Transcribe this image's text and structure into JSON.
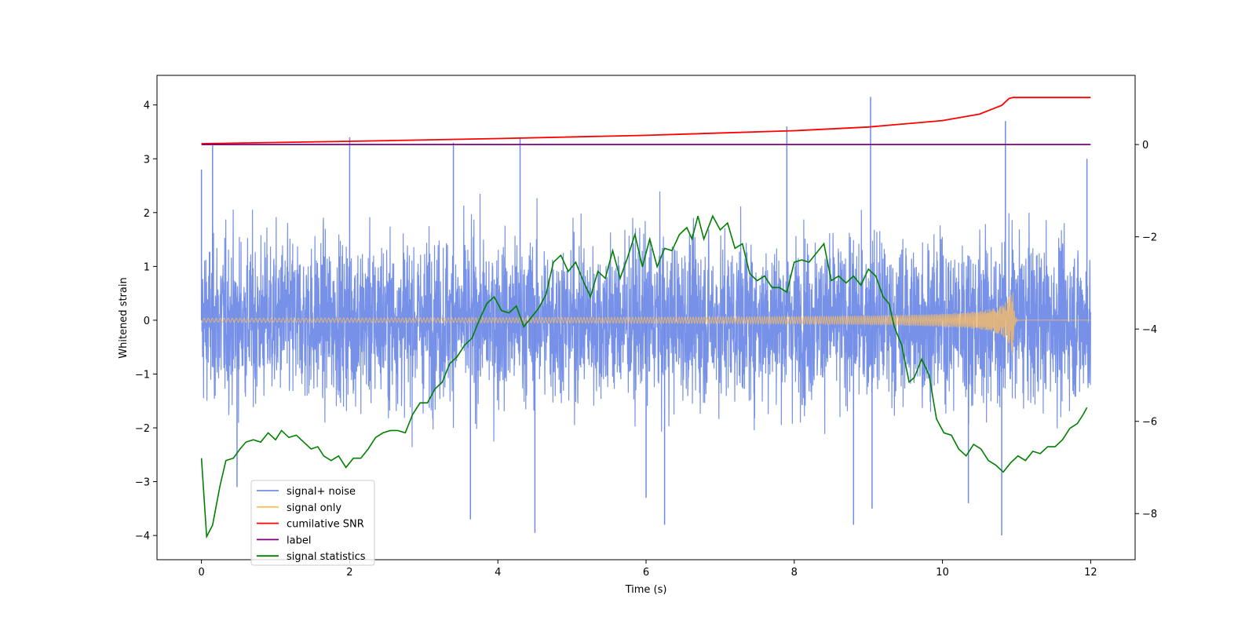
{
  "chart_data": {
    "type": "line",
    "title": "",
    "xlabel": "Time (s)",
    "ylabel": "Whitened strain",
    "xlim": [
      -0.6,
      12.6
    ],
    "ylim": [
      -4.45,
      4.55
    ],
    "y2lim": [
      -9.0,
      1.5
    ],
    "grid": false,
    "legend_position": "lower-left",
    "x_ticks": [
      "0",
      "2",
      "4",
      "6",
      "8",
      "10",
      "12"
    ],
    "y_ticks": [
      "−4",
      "−3",
      "−2",
      "−1",
      "0",
      "1",
      "2",
      "3",
      "4"
    ],
    "y2_ticks": [
      "−8",
      "−6",
      "−4",
      "−2",
      "0"
    ],
    "series": [
      {
        "name": "signal+ noise",
        "axis": "left",
        "color": "#6f8be6",
        "description_points": {
          "envelope_low": -2.0,
          "envelope_high": 2.0,
          "spikes": [
            [
              0.0,
              2.8
            ],
            [
              0.15,
              3.3
            ],
            [
              0.48,
              -3.1
            ],
            [
              2.0,
              3.4
            ],
            [
              3.4,
              3.3
            ],
            [
              3.63,
              -3.7
            ],
            [
              4.3,
              3.4
            ],
            [
              4.5,
              -3.95
            ],
            [
              6.0,
              -3.3
            ],
            [
              6.25,
              -3.8
            ],
            [
              7.9,
              3.6
            ],
            [
              8.8,
              -3.8
            ],
            [
              9.03,
              4.15
            ],
            [
              9.05,
              -3.5
            ],
            [
              10.35,
              -3.4
            ],
            [
              10.8,
              -4.0
            ],
            [
              10.85,
              3.7
            ],
            [
              11.95,
              3.0
            ]
          ]
        }
      },
      {
        "name": "signal only",
        "axis": "left",
        "color": "#ffbf5f",
        "chirp": {
          "t_start": 0.0,
          "t_merge": 10.95,
          "t_end": 12.0,
          "max_amplitude": 0.7
        }
      },
      {
        "name": "cumilative SNR",
        "axis": "right",
        "color": "#ff0000",
        "points": [
          [
            0.0,
            0.02
          ],
          [
            2.0,
            0.07
          ],
          [
            4.0,
            0.13
          ],
          [
            6.0,
            0.2
          ],
          [
            8.0,
            0.3
          ],
          [
            9.0,
            0.38
          ],
          [
            10.0,
            0.52
          ],
          [
            10.5,
            0.66
          ],
          [
            10.8,
            0.85
          ],
          [
            10.9,
            1.0
          ],
          [
            10.95,
            1.02
          ],
          [
            12.0,
            1.02
          ]
        ]
      },
      {
        "name": "label",
        "axis": "right",
        "color": "#800080",
        "points": [
          [
            0.0,
            0.0
          ],
          [
            12.0,
            0.0
          ]
        ]
      },
      {
        "name": "signal statistics",
        "axis": "right",
        "color": "#008000",
        "points": [
          [
            0.0,
            -6.8
          ],
          [
            0.07,
            -8.5
          ],
          [
            0.15,
            -8.25
          ],
          [
            0.25,
            -7.4
          ],
          [
            0.33,
            -6.85
          ],
          [
            0.43,
            -6.8
          ],
          [
            0.52,
            -6.6
          ],
          [
            0.6,
            -6.45
          ],
          [
            0.7,
            -6.4
          ],
          [
            0.8,
            -6.45
          ],
          [
            0.9,
            -6.25
          ],
          [
            1.0,
            -6.4
          ],
          [
            1.08,
            -6.2
          ],
          [
            1.18,
            -6.35
          ],
          [
            1.28,
            -6.3
          ],
          [
            1.38,
            -6.45
          ],
          [
            1.48,
            -6.6
          ],
          [
            1.57,
            -6.55
          ],
          [
            1.65,
            -6.75
          ],
          [
            1.75,
            -6.85
          ],
          [
            1.85,
            -6.75
          ],
          [
            1.95,
            -7.0
          ],
          [
            2.05,
            -6.8
          ],
          [
            2.15,
            -6.8
          ],
          [
            2.25,
            -6.6
          ],
          [
            2.35,
            -6.35
          ],
          [
            2.45,
            -6.25
          ],
          [
            2.55,
            -6.2
          ],
          [
            2.65,
            -6.2
          ],
          [
            2.75,
            -6.25
          ],
          [
            2.85,
            -5.85
          ],
          [
            2.95,
            -5.6
          ],
          [
            3.05,
            -5.6
          ],
          [
            3.15,
            -5.3
          ],
          [
            3.25,
            -5.15
          ],
          [
            3.35,
            -4.75
          ],
          [
            3.45,
            -4.6
          ],
          [
            3.55,
            -4.35
          ],
          [
            3.65,
            -4.2
          ],
          [
            3.75,
            -3.8
          ],
          [
            3.85,
            -3.45
          ],
          [
            3.95,
            -3.3
          ],
          [
            4.05,
            -3.6
          ],
          [
            4.15,
            -3.65
          ],
          [
            4.25,
            -3.5
          ],
          [
            4.35,
            -3.95
          ],
          [
            4.45,
            -3.75
          ],
          [
            4.55,
            -3.55
          ],
          [
            4.65,
            -3.25
          ],
          [
            4.75,
            -2.55
          ],
          [
            4.85,
            -2.4
          ],
          [
            4.95,
            -2.75
          ],
          [
            5.05,
            -2.55
          ],
          [
            5.15,
            -2.95
          ],
          [
            5.25,
            -3.3
          ],
          [
            5.35,
            -2.75
          ],
          [
            5.45,
            -2.9
          ],
          [
            5.55,
            -2.3
          ],
          [
            5.65,
            -2.9
          ],
          [
            5.75,
            -2.45
          ],
          [
            5.85,
            -1.95
          ],
          [
            5.95,
            -2.65
          ],
          [
            6.05,
            -2.05
          ],
          [
            6.15,
            -2.65
          ],
          [
            6.25,
            -2.25
          ],
          [
            6.35,
            -2.3
          ],
          [
            6.45,
            -1.95
          ],
          [
            6.55,
            -1.8
          ],
          [
            6.62,
            -2.05
          ],
          [
            6.7,
            -1.55
          ],
          [
            6.78,
            -2.05
          ],
          [
            6.9,
            -1.55
          ],
          [
            7.0,
            -1.85
          ],
          [
            7.1,
            -1.7
          ],
          [
            7.2,
            -2.25
          ],
          [
            7.3,
            -2.15
          ],
          [
            7.4,
            -2.8
          ],
          [
            7.5,
            -2.95
          ],
          [
            7.6,
            -2.85
          ],
          [
            7.7,
            -3.1
          ],
          [
            7.8,
            -3.1
          ],
          [
            7.9,
            -3.2
          ],
          [
            8.0,
            -2.55
          ],
          [
            8.1,
            -2.5
          ],
          [
            8.2,
            -2.55
          ],
          [
            8.3,
            -2.35
          ],
          [
            8.4,
            -2.15
          ],
          [
            8.5,
            -2.95
          ],
          [
            8.6,
            -2.85
          ],
          [
            8.7,
            -3.0
          ],
          [
            8.8,
            -2.85
          ],
          [
            8.9,
            -3.05
          ],
          [
            9.0,
            -2.7
          ],
          [
            9.1,
            -2.85
          ],
          [
            9.2,
            -3.3
          ],
          [
            9.28,
            -3.45
          ],
          [
            9.35,
            -3.95
          ],
          [
            9.45,
            -4.35
          ],
          [
            9.55,
            -5.15
          ],
          [
            9.62,
            -5.05
          ],
          [
            9.72,
            -4.65
          ],
          [
            9.82,
            -5.0
          ],
          [
            9.92,
            -5.95
          ],
          [
            10.02,
            -6.25
          ],
          [
            10.12,
            -6.3
          ],
          [
            10.22,
            -6.6
          ],
          [
            10.32,
            -6.75
          ],
          [
            10.42,
            -6.5
          ],
          [
            10.52,
            -6.6
          ],
          [
            10.62,
            -6.85
          ],
          [
            10.72,
            -6.95
          ],
          [
            10.82,
            -7.1
          ],
          [
            10.92,
            -6.9
          ],
          [
            11.02,
            -6.75
          ],
          [
            11.12,
            -6.85
          ],
          [
            11.22,
            -6.65
          ],
          [
            11.32,
            -6.7
          ],
          [
            11.42,
            -6.55
          ],
          [
            11.52,
            -6.55
          ],
          [
            11.62,
            -6.4
          ],
          [
            11.72,
            -6.15
          ],
          [
            11.82,
            -6.05
          ],
          [
            11.9,
            -5.85
          ],
          [
            11.95,
            -5.7
          ]
        ]
      }
    ]
  }
}
